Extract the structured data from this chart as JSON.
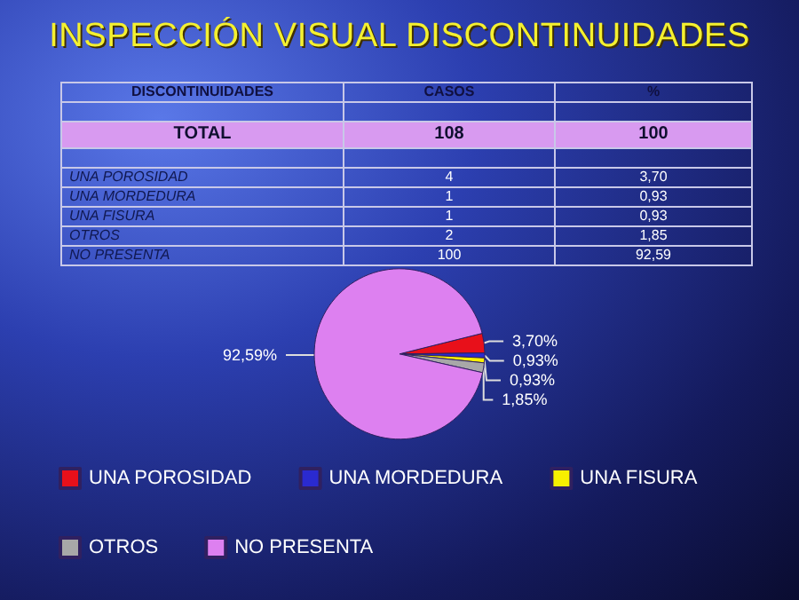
{
  "chart_data": {
    "type": "pie",
    "title": "INSPECCIÓN VISUAL DISCONTINUIDADES",
    "categories": [
      "UNA POROSIDAD",
      "UNA MORDEDURA",
      "UNA FISURA",
      "OTROS",
      "NO PRESENTA"
    ],
    "values": [
      3.7,
      0.93,
      0.93,
      1.85,
      92.59
    ],
    "colors": [
      "#e8101a",
      "#2a2ad0",
      "#f8f000",
      "#a8a8a8",
      "#dd80f0"
    ],
    "value_labels": [
      "3,70%",
      "0,93%",
      "0,93%",
      "1,85%",
      "92,59%"
    ],
    "annotations": [
      "DISCONTINUIDADES",
      "CASOS",
      "%",
      "TOTAL",
      "108",
      "100",
      "4",
      "1",
      "1",
      "2",
      "100",
      "3,70",
      "0,93",
      "0,93",
      "1,85",
      "92,59"
    ],
    "data_labels": true,
    "legend": "bottom"
  }
}
